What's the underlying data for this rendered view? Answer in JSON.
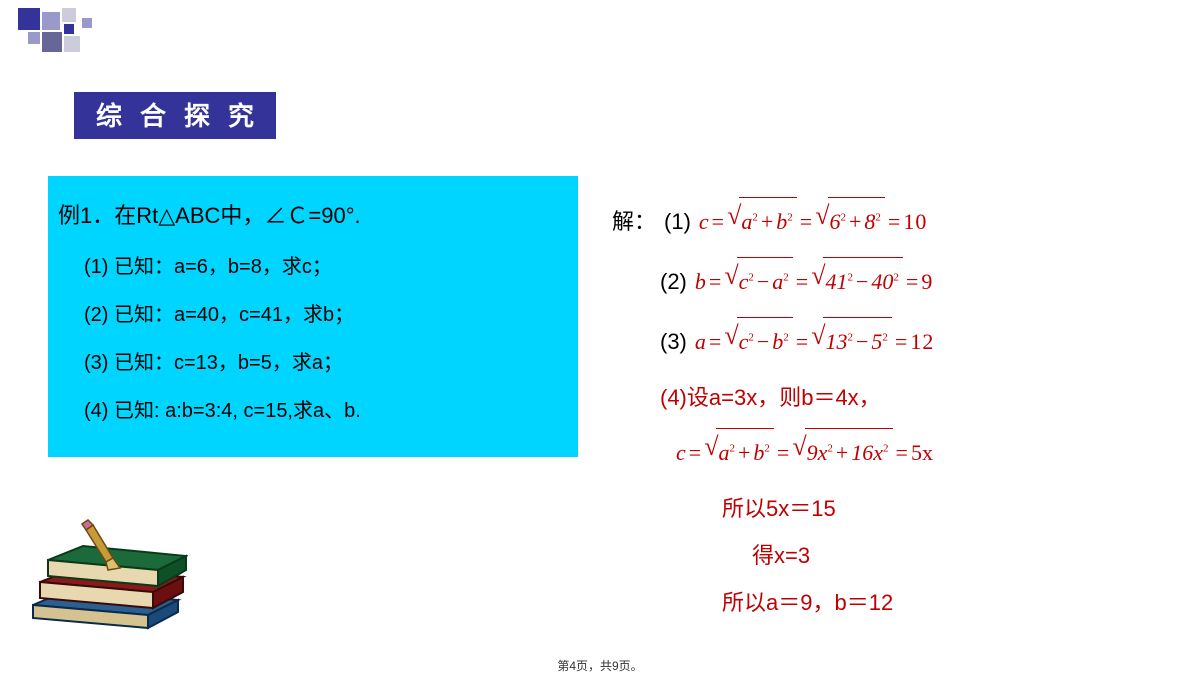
{
  "colors": {
    "navy": "#333399",
    "navy_light": "#9999cc",
    "navy_mid": "#666699",
    "pale": "#ccccdd",
    "cyan": "#00d5ff",
    "title_text": "#ffffff",
    "problem_text": "#000000",
    "accent_red": "#c00000"
  },
  "fonts": {
    "title_size": 26,
    "body_size": 22,
    "sub_size": 20
  },
  "title_chars": [
    "综",
    "合",
    "探",
    "究"
  ],
  "problem": {
    "header": "例1．在Rt△ABC中，∠Ｃ=90°.",
    "items": [
      "(1) 已知：a=6，b=8，求c；",
      "(2) 已知：a=40，c=41，求b；",
      "(3) 已知：c=13，b=5，求a；",
      "(4) 已知: a:b=3:4, c=15,求a、b."
    ]
  },
  "solution": {
    "label": "解：",
    "s1": {
      "n": "(1)",
      "v": "c",
      "a": "a",
      "b": "b",
      "av": "6",
      "bv": "8",
      "res": "10"
    },
    "s2": {
      "n": "(2)",
      "v": "b",
      "a": "c",
      "b": "a",
      "av": "41",
      "bv": "40",
      "res": "9"
    },
    "s3": {
      "n": "(3)",
      "v": "a",
      "a": "c",
      "b": "b",
      "av": "13",
      "bv": "5",
      "res": "12"
    },
    "s4_text": "(4)设a=3x，则b＝4x，",
    "s4_math": {
      "v": "c",
      "a": "a",
      "b": "b",
      "c1": "9",
      "c2": "16",
      "res": "5x"
    },
    "lines": [
      "所以5x＝15",
      "得x=3",
      "所以a＝9，b＝12"
    ]
  },
  "pager": "第4页，共9页。"
}
